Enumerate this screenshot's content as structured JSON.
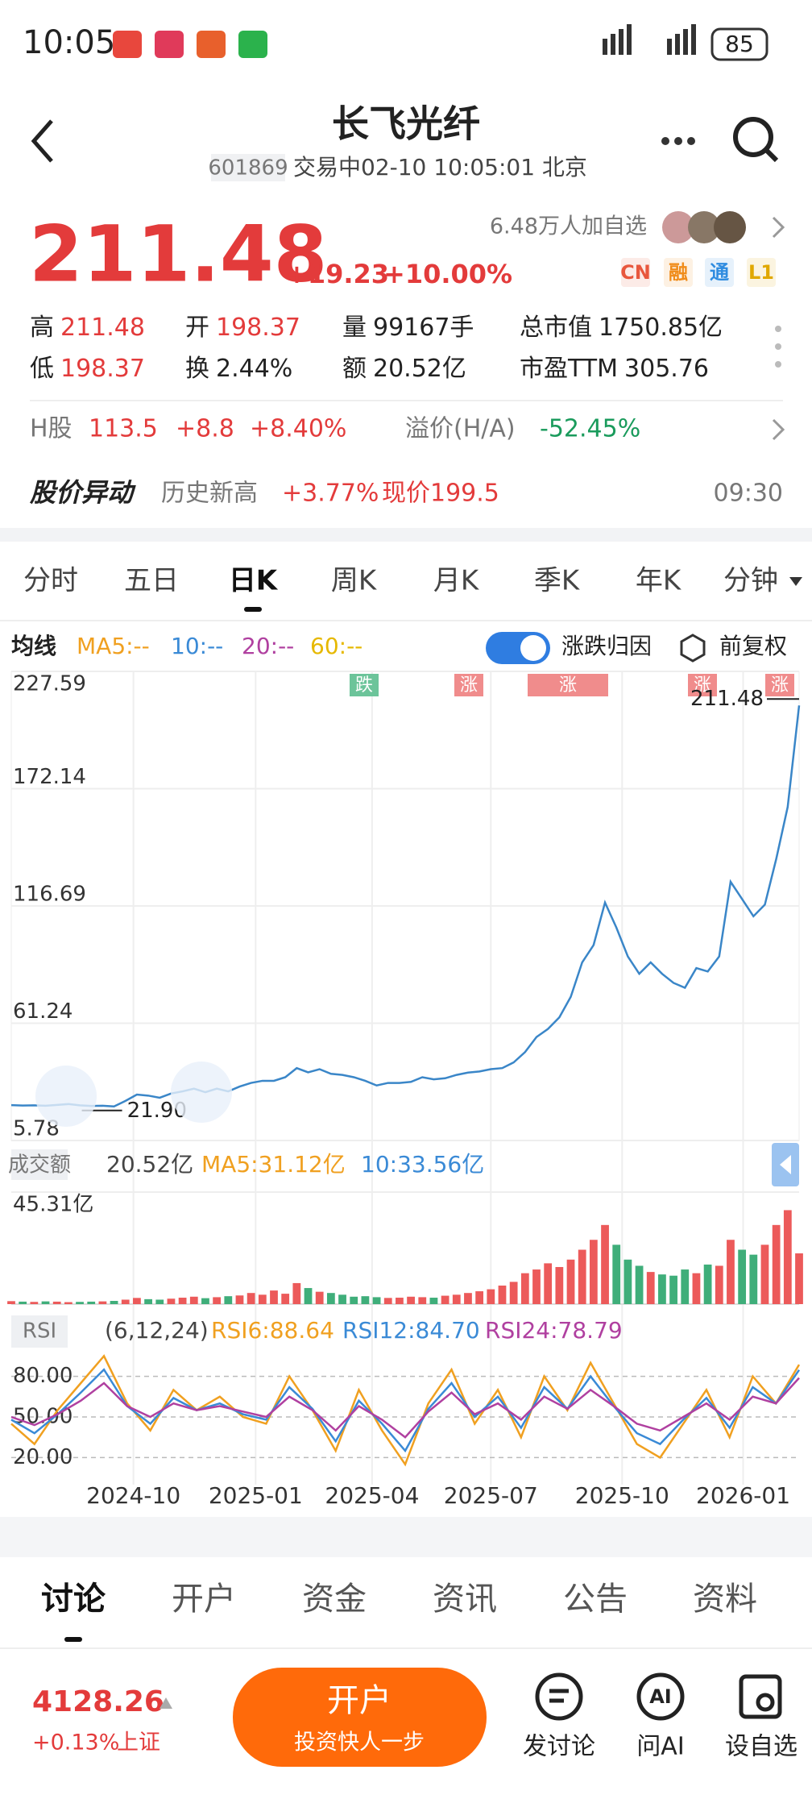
{
  "status_bar": {
    "time": "10:05",
    "battery": "85"
  },
  "header": {
    "title": "长飞光纤",
    "code": "601869",
    "status": "交易中02-10 10:05:01 北京"
  },
  "followers": "6.48万人加自选",
  "tags": [
    {
      "text": "CN",
      "color": "#e8573d"
    },
    {
      "text": "融",
      "color": "#f08c1a"
    },
    {
      "text": "通",
      "color": "#2f8ce0"
    },
    {
      "text": "L1",
      "color": "#e0a800"
    }
  ],
  "quote": {
    "price": "211.48",
    "change": "+19.23",
    "change_pct": "+10.00%"
  },
  "stats": [
    [
      {
        "label": "高",
        "value": "211.48",
        "color": "#e33b3b"
      },
      {
        "label": "开",
        "value": "198.37",
        "color": "#e33b3b"
      },
      {
        "label": "量",
        "value": "99167手",
        "color": "#222"
      },
      {
        "label": "总市值",
        "value": "1750.85亿",
        "color": "#222"
      }
    ],
    [
      {
        "label": "低",
        "value": "198.37",
        "color": "#e33b3b"
      },
      {
        "label": "换",
        "value": "2.44%",
        "color": "#222"
      },
      {
        "label": "额",
        "value": "20.52亿",
        "color": "#222"
      },
      {
        "label": "市盈TTM",
        "value": "305.76",
        "color": "#222"
      }
    ]
  ],
  "h_share": {
    "label": "H股",
    "price": "113.5",
    "change": "+8.8",
    "change_pct": "+8.40%",
    "premium_label": "溢价(H/A)",
    "premium": "-52.45%"
  },
  "alert": {
    "title": "股价异动",
    "text": "历史新高",
    "change": "+3.77%",
    "price": "现价199.5",
    "time": "09:30"
  },
  "period_tabs": {
    "items": [
      "分时",
      "五日",
      "日K",
      "周K",
      "月K",
      "季K",
      "年K",
      "分钟"
    ],
    "active": 2
  },
  "ma_bar": {
    "label": "均线",
    "items": [
      {
        "text": "MA5:--",
        "color": "#f0a020"
      },
      {
        "text": "10:--",
        "color": "#3a8ad6"
      },
      {
        "text": "20:--",
        "color": "#b040a0"
      },
      {
        "text": "60:--",
        "color": "#e6b800"
      }
    ],
    "toggle": "涨跌归因",
    "adjust": "前复权"
  },
  "chart": {
    "type": "line",
    "color": "#3a86c8",
    "signals": [
      {
        "text": "跌",
        "color": "#6cc49a"
      },
      {
        "text": "涨",
        "color": "#f08c8c"
      },
      {
        "text": "涨",
        "color": "#f08c8c"
      },
      {
        "text": "涨",
        "color": "#f08c8c"
      },
      {
        "text": "涨",
        "color": "#f08c8c"
      }
    ],
    "ylim": [
      5.78,
      227.59
    ],
    "yticks": [
      227.59,
      172.14,
      116.69,
      61.24,
      5.78
    ],
    "xlim": [
      0,
      69
    ],
    "xticks": [
      {
        "value": 10.7,
        "label": "2024-10"
      },
      {
        "value": 21.4,
        "label": "2025-01"
      },
      {
        "value": 31.6,
        "label": "2025-04"
      },
      {
        "value": 42,
        "label": "2025-07"
      },
      {
        "value": 53.5,
        "label": "2025-10"
      },
      {
        "value": 64.1,
        "label": "2026-01"
      }
    ],
    "values": [
      22.5,
      22.3,
      22.4,
      22.2,
      22.6,
      23,
      22.4,
      22.1,
      22.2,
      21.9,
      24.5,
      27.5,
      27,
      26,
      28,
      29,
      30.3,
      28.6,
      30.3,
      29,
      31.3,
      33,
      34,
      34,
      35.7,
      40,
      38,
      39.5,
      37.3,
      36.8,
      35.7,
      34,
      31.8,
      33,
      33,
      33.5,
      35.7,
      34.7,
      35.2,
      36.8,
      37.9,
      38.4,
      39.5,
      40,
      42.7,
      47.6,
      54.7,
      58.5,
      64,
      73.7,
      90,
      98.2,
      118.3,
      106.4,
      92.8,
      84.6,
      90,
      84.6,
      80.3,
      78,
      87.3,
      85.7,
      92.8,
      128.1,
      120,
      111.8,
      117.3,
      139,
      163.5,
      211.48
    ],
    "min_label": "21.90",
    "max_label": "211.48"
  },
  "volume": {
    "type": "bar",
    "label": "成交额",
    "current": "20.52亿",
    "ma5": "MA5:31.12亿",
    "ma10": "10:33.56亿",
    "up_color": "#ec5a5a",
    "down_color": "#3fae7a",
    "ylim": [
      0,
      45.31
    ],
    "yticks": [
      {
        "value": 45.31,
        "label": "45.31亿"
      }
    ],
    "values": [
      1.2,
      1.0,
      0.9,
      1.1,
      1.0,
      0.8,
      0.9,
      1.0,
      1.1,
      1.3,
      1.8,
      2.5,
      2.0,
      1.8,
      2.2,
      2.6,
      3.0,
      2.4,
      2.8,
      3.2,
      3.5,
      4.5,
      3.8,
      5.5,
      4.2,
      8.5,
      6.5,
      5.0,
      4.5,
      3.8,
      3.0,
      3.2,
      2.8,
      2.5,
      2.6,
      3.0,
      2.8,
      2.6,
      3.4,
      3.8,
      4.5,
      5.2,
      6.0,
      7.5,
      9.0,
      12.5,
      14.0,
      16.5,
      15.0,
      18.0,
      22.0,
      26.0,
      32.0,
      24.0,
      18.0,
      15.5,
      13.0,
      12.0,
      11.5,
      14.0,
      12.5,
      16.0,
      15.5,
      26.0,
      22.0,
      20.0,
      24.0,
      32.0,
      38.0,
      20.52
    ]
  },
  "rsi": {
    "type": "line",
    "label": "RSI",
    "params": "(6,12,24)",
    "ylim": [
      0,
      100
    ],
    "yticks": [
      {
        "value": 80,
        "label": "80.00"
      },
      {
        "value": 50,
        "label": "50.00"
      },
      {
        "value": 20,
        "label": "20.00"
      }
    ],
    "series": [
      {
        "name": "RSI6:88.64",
        "color": "#f0a020",
        "values": [
          45,
          30,
          55,
          75,
          95,
          60,
          40,
          70,
          55,
          65,
          50,
          45,
          80,
          55,
          25,
          70,
          40,
          15,
          60,
          85,
          45,
          70,
          35,
          80,
          55,
          90,
          60,
          30,
          20,
          45,
          70,
          35,
          80,
          60,
          88.64
        ]
      },
      {
        "name": "RSI12:84.70",
        "color": "#3a8ad6",
        "values": [
          48,
          38,
          52,
          68,
          85,
          58,
          45,
          64,
          55,
          60,
          52,
          48,
          72,
          56,
          32,
          62,
          45,
          25,
          56,
          75,
          50,
          65,
          42,
          72,
          56,
          80,
          58,
          38,
          30,
          48,
          64,
          42,
          72,
          60,
          84.7
        ]
      },
      {
        "name": "RSI24:78.79",
        "color": "#b040a0",
        "values": [
          50,
          44,
          52,
          62,
          75,
          58,
          50,
          60,
          55,
          58,
          54,
          50,
          65,
          55,
          40,
          58,
          48,
          35,
          54,
          68,
          52,
          60,
          48,
          65,
          56,
          70,
          58,
          45,
          40,
          50,
          60,
          48,
          65,
          60,
          78.79
        ]
      }
    ]
  },
  "bottom_tabs": {
    "items": [
      "讨论",
      "开户",
      "资金",
      "资讯",
      "公告",
      "资料"
    ],
    "active": 0
  },
  "footer": {
    "index_value": "4128.26",
    "index_change": "+0.13%",
    "index_name": "上证",
    "button_title": "开户",
    "button_sub": "投资快人一步",
    "actions": [
      "发讨论",
      "问AI",
      "设自选"
    ]
  }
}
